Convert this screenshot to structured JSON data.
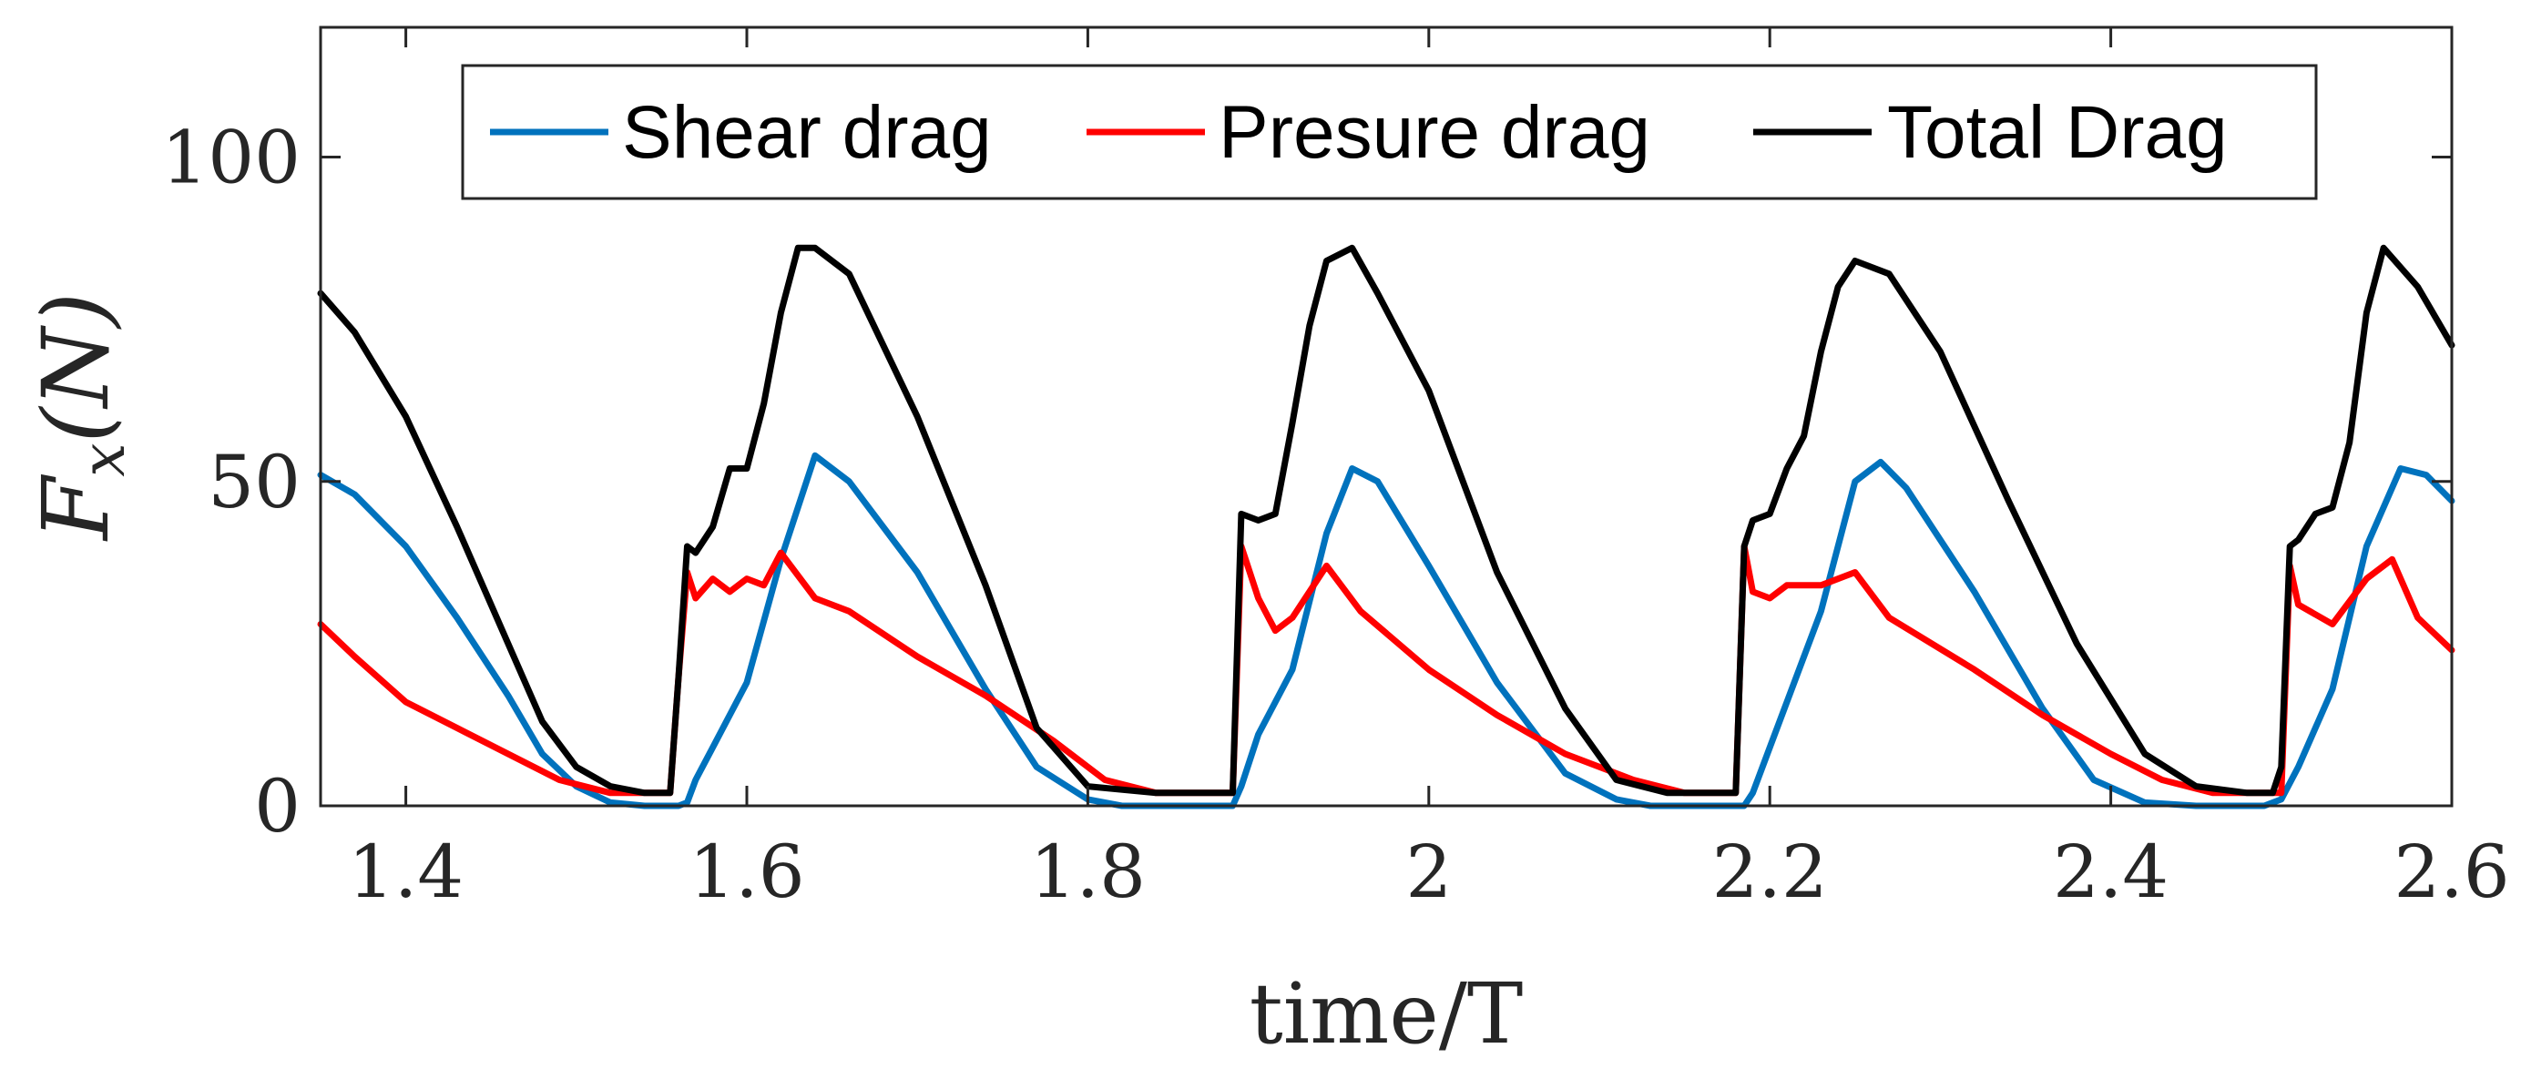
{
  "chart_data": {
    "type": "line",
    "title": "",
    "xlabel": "time/T",
    "ylabel": "F_x(N)",
    "ylabel_parts": {
      "main": "F",
      "sub": "x",
      "paren": "(N)"
    },
    "xlim": [
      1.35,
      2.6
    ],
    "ylim": [
      0,
      120
    ],
    "xticks": [
      1.4,
      1.6,
      1.8,
      2,
      2.2,
      2.4,
      2.6
    ],
    "xtick_labels": [
      "1.4",
      "1.6",
      "1.8",
      "2",
      "2.2",
      "2.4",
      "2.6"
    ],
    "yticks": [
      0,
      50,
      100
    ],
    "ytick_labels": [
      "0",
      "50",
      "100"
    ],
    "grid": false,
    "legend_position": "top, horizontal",
    "series": [
      {
        "name": "Shear drag",
        "color": "#0072BD",
        "x": [
          1.35,
          1.37,
          1.4,
          1.43,
          1.46,
          1.48,
          1.5,
          1.52,
          1.54,
          1.55,
          1.56,
          1.565,
          1.57,
          1.58,
          1.6,
          1.62,
          1.64,
          1.66,
          1.7,
          1.74,
          1.77,
          1.8,
          1.82,
          1.84,
          1.87,
          1.885,
          1.89,
          1.9,
          1.92,
          1.94,
          1.955,
          1.97,
          2.0,
          2.04,
          2.08,
          2.11,
          2.13,
          2.16,
          2.185,
          2.19,
          2.2,
          2.23,
          2.25,
          2.265,
          2.28,
          2.32,
          2.36,
          2.39,
          2.42,
          2.45,
          2.49,
          2.5,
          2.51,
          2.53,
          2.55,
          2.57,
          2.585,
          2.6
        ],
        "y": [
          51,
          48,
          40,
          29,
          17,
          8,
          3,
          0.5,
          0,
          0,
          0,
          0.5,
          4,
          9,
          19,
          38,
          54,
          50,
          36,
          18,
          6,
          1,
          0,
          0,
          0,
          0,
          3,
          11,
          21,
          42,
          52,
          50,
          37,
          19,
          5,
          1,
          0,
          0,
          0,
          2,
          9,
          30,
          50,
          53,
          49,
          33,
          15,
          4,
          0.5,
          0,
          0,
          1,
          6,
          18,
          40,
          52,
          51,
          47
        ]
      },
      {
        "name": "Presure drag",
        "color": "#FF0000",
        "x": [
          1.35,
          1.37,
          1.4,
          1.43,
          1.46,
          1.49,
          1.52,
          1.54,
          1.555,
          1.56,
          1.565,
          1.57,
          1.58,
          1.59,
          1.6,
          1.61,
          1.62,
          1.64,
          1.66,
          1.7,
          1.74,
          1.78,
          1.81,
          1.84,
          1.87,
          1.885,
          1.89,
          1.9,
          1.91,
          1.92,
          1.94,
          1.96,
          2.0,
          2.04,
          2.08,
          2.12,
          2.15,
          2.17,
          2.18,
          2.185,
          2.19,
          2.2,
          2.21,
          2.23,
          2.25,
          2.27,
          2.32,
          2.36,
          2.4,
          2.43,
          2.46,
          2.49,
          2.5,
          2.505,
          2.51,
          2.53,
          2.55,
          2.565,
          2.58,
          2.6
        ],
        "y": [
          28,
          23,
          16,
          12,
          8,
          4,
          2,
          2,
          2,
          20,
          36,
          32,
          35,
          33,
          35,
          34,
          39,
          32,
          30,
          23,
          17,
          10,
          4,
          2,
          2,
          2,
          40,
          32,
          27,
          29,
          37,
          30,
          21,
          14,
          8,
          4,
          2,
          2,
          2,
          40,
          33,
          32,
          34,
          34,
          36,
          29,
          21,
          14,
          8,
          4,
          2,
          2,
          2,
          37,
          31,
          28,
          35,
          38,
          29,
          24
        ]
      },
      {
        "name": "Total Drag",
        "color": "#000000",
        "x": [
          1.35,
          1.37,
          1.4,
          1.43,
          1.46,
          1.48,
          1.5,
          1.52,
          1.54,
          1.555,
          1.56,
          1.565,
          1.57,
          1.58,
          1.59,
          1.6,
          1.61,
          1.62,
          1.63,
          1.64,
          1.66,
          1.7,
          1.74,
          1.77,
          1.8,
          1.84,
          1.87,
          1.885,
          1.89,
          1.9,
          1.91,
          1.92,
          1.93,
          1.94,
          1.955,
          1.97,
          2.0,
          2.04,
          2.08,
          2.11,
          2.14,
          2.17,
          2.18,
          2.185,
          2.19,
          2.2,
          2.21,
          2.22,
          2.23,
          2.24,
          2.25,
          2.27,
          2.3,
          2.34,
          2.38,
          2.42,
          2.45,
          2.48,
          2.495,
          2.5,
          2.505,
          2.51,
          2.52,
          2.53,
          2.54,
          2.55,
          2.56,
          2.58,
          2.6
        ],
        "y": [
          79,
          73,
          60,
          43,
          25,
          13,
          6,
          3,
          2,
          2,
          20,
          40,
          39,
          43,
          52,
          52,
          62,
          76,
          86,
          86,
          82,
          60,
          34,
          12,
          3,
          2,
          2,
          2,
          45,
          44,
          45,
          59,
          74,
          84,
          86,
          79,
          64,
          36,
          15,
          4,
          2,
          2,
          2,
          40,
          44,
          45,
          52,
          57,
          70,
          80,
          84,
          82,
          70,
          47,
          25,
          8,
          3,
          2,
          2,
          6,
          40,
          41,
          45,
          46,
          56,
          76,
          86,
          80,
          71
        ]
      }
    ]
  }
}
